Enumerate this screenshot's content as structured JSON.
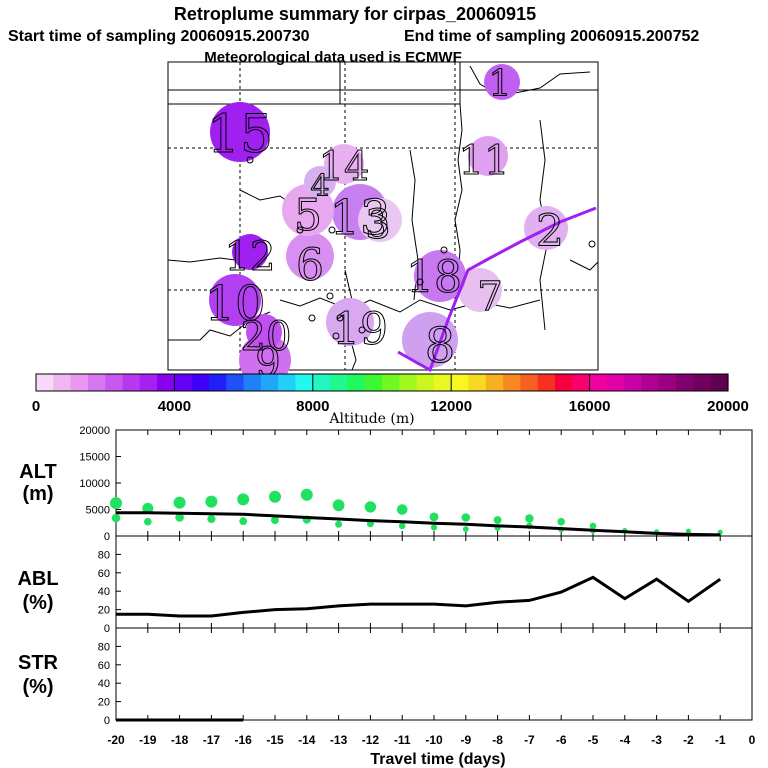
{
  "header": {
    "title": "Retroplume summary for cirpas_20060915",
    "start_label": "Start time of sampling 20060915.200730",
    "end_label": "End time of sampling 20060915.200752",
    "met_label": "Meteorological data used is ECMWF"
  },
  "colorbar": {
    "colors": [
      "#f8d8f8",
      "#f0b8f0",
      "#e898f0",
      "#d878f0",
      "#c858f0",
      "#b838f0",
      "#a820f0",
      "#8800f0",
      "#6800f8",
      "#4000f8",
      "#2020f8",
      "#2050f8",
      "#2080f8",
      "#20a8f8",
      "#20d0f8",
      "#20f8f0",
      "#20f8c0",
      "#20f890",
      "#20f860",
      "#40f830",
      "#70f820",
      "#a0f820",
      "#c8f820",
      "#e8f820",
      "#f8f820",
      "#f8d820",
      "#f8b020",
      "#f88820",
      "#f86020",
      "#f83020",
      "#f80040",
      "#f80070",
      "#f000a0",
      "#e000a8",
      "#c800a8",
      "#b00090",
      "#980080",
      "#800070",
      "#700060",
      "#600050"
    ],
    "tick_labels": [
      "0",
      "4000",
      "8000",
      "12000",
      "16000",
      "20000"
    ],
    "xlabel": "Altitude (m)"
  },
  "map": {
    "clusters": [
      {
        "label": "15",
        "day": -15,
        "color": "#a020f0"
      },
      {
        "label": "14",
        "day": -14,
        "color": "#e8b0f0"
      },
      {
        "label": "13",
        "day": -13,
        "color": "#c880f0"
      },
      {
        "label": "12",
        "day": -12,
        "color": "#a020f0"
      },
      {
        "label": "11",
        "day": -11,
        "color": "#e0a0f0"
      },
      {
        "label": "10",
        "day": -10,
        "color": "#b040f0"
      },
      {
        "label": "9",
        "day": -9,
        "color": "#d070f0"
      },
      {
        "label": "8",
        "day": -8,
        "color": "#d0a0f0"
      },
      {
        "label": "7",
        "day": -7,
        "color": "#e8c0f0"
      },
      {
        "label": "6",
        "day": -6,
        "color": "#d890f0"
      },
      {
        "label": "5",
        "day": -5,
        "color": "#e8a8f0"
      },
      {
        "label": "4",
        "day": -4,
        "color": "#d8b0f0"
      },
      {
        "label": "3",
        "day": -3,
        "color": "#e8c8f0"
      },
      {
        "label": "2",
        "day": -2,
        "color": "#e0b0f0"
      },
      {
        "label": "1",
        "day": -1,
        "color": "#c060f0"
      },
      {
        "label": "18",
        "day": -18,
        "color": "#c878f0"
      },
      {
        "label": "19",
        "day": -19,
        "color": "#d8a8f0"
      },
      {
        "label": "20",
        "day": -20,
        "color": "#c050f0"
      }
    ]
  },
  "chart_data": [
    {
      "type": "line",
      "title": "ALT (m)",
      "name_line1": "ALT",
      "name_line2": "(m)",
      "x": [
        -20,
        -19,
        -18,
        -17,
        -16,
        -15,
        -14,
        -13,
        -12,
        -11,
        -10,
        -9,
        -8,
        -7,
        -6,
        -5,
        -4,
        -3,
        -2,
        -1
      ],
      "ylim": [
        0,
        20000
      ],
      "yticks": [
        0,
        5000,
        10000,
        15000,
        20000
      ],
      "ytick_labels": [
        "0",
        "5000",
        "10000",
        "15000",
        "20000"
      ],
      "values": [
        4400,
        4400,
        4300,
        4200,
        4100,
        3800,
        3500,
        3200,
        2900,
        2700,
        2400,
        2200,
        1900,
        1700,
        1400,
        1100,
        800,
        500,
        300,
        200
      ],
      "scatter_color": "#20e060",
      "scatter": [
        {
          "x": -20,
          "y": 6200
        },
        {
          "x": -20,
          "y": 3400
        },
        {
          "x": -19,
          "y": 5200
        },
        {
          "x": -19,
          "y": 2700
        },
        {
          "x": -18,
          "y": 6300
        },
        {
          "x": -18,
          "y": 3500
        },
        {
          "x": -17,
          "y": 6500
        },
        {
          "x": -17,
          "y": 3200
        },
        {
          "x": -16,
          "y": 6900
        },
        {
          "x": -16,
          "y": 2800
        },
        {
          "x": -15,
          "y": 7400
        },
        {
          "x": -15,
          "y": 3000
        },
        {
          "x": -14,
          "y": 7800
        },
        {
          "x": -14,
          "y": 3100
        },
        {
          "x": -13,
          "y": 5800
        },
        {
          "x": -13,
          "y": 2200
        },
        {
          "x": -12,
          "y": 5500
        },
        {
          "x": -12,
          "y": 2300
        },
        {
          "x": -11,
          "y": 5000
        },
        {
          "x": -11,
          "y": 1900
        },
        {
          "x": -10,
          "y": 3600
        },
        {
          "x": -10,
          "y": 1600
        },
        {
          "x": -9,
          "y": 3500
        },
        {
          "x": -9,
          "y": 1300
        },
        {
          "x": -8,
          "y": 3000
        },
        {
          "x": -8,
          "y": 1500
        },
        {
          "x": -7,
          "y": 3300
        },
        {
          "x": -7,
          "y": 1900
        },
        {
          "x": -6,
          "y": 2700
        },
        {
          "x": -6,
          "y": 1200
        },
        {
          "x": -5,
          "y": 1900
        },
        {
          "x": -5,
          "y": 900
        },
        {
          "x": -4,
          "y": 1000
        },
        {
          "x": -3,
          "y": 800
        },
        {
          "x": -2,
          "y": 900
        },
        {
          "x": -1,
          "y": 700
        }
      ]
    },
    {
      "type": "line",
      "title": "ABL (%)",
      "name_line1": "ABL",
      "name_line2": "(%)",
      "x": [
        -20,
        -19,
        -18,
        -17,
        -16,
        -15,
        -14,
        -13,
        -12,
        -11,
        -10,
        -9,
        -8,
        -7,
        -6,
        -5,
        -4,
        -3,
        -2,
        -1
      ],
      "ylim": [
        0,
        100
      ],
      "yticks": [
        0,
        20,
        40,
        60,
        80
      ],
      "ytick_labels": [
        "0",
        "20",
        "40",
        "60",
        "80"
      ],
      "values": [
        15,
        15,
        13,
        13,
        17,
        20,
        21,
        24,
        26,
        26,
        26,
        24,
        28,
        30,
        39,
        55,
        32,
        53,
        29,
        53
      ]
    },
    {
      "type": "line",
      "title": "STR (%)",
      "name_line1": "STR",
      "name_line2": "(%)",
      "x": [
        -20,
        -19,
        -18,
        -17,
        -16
      ],
      "ylim": [
        0,
        100
      ],
      "yticks": [
        0,
        20,
        40,
        60,
        80
      ],
      "ytick_labels": [
        "0",
        "20",
        "40",
        "60",
        "80"
      ],
      "values": [
        0,
        0,
        0,
        0,
        0
      ]
    }
  ],
  "xaxis": {
    "label": "Travel time (days)",
    "ticks": [
      -20,
      -19,
      -18,
      -17,
      -16,
      -15,
      -14,
      -13,
      -12,
      -11,
      -10,
      -9,
      -8,
      -7,
      -6,
      -5,
      -4,
      -3,
      -2,
      -1,
      0
    ],
    "tick_labels": [
      "-20",
      "-19",
      "-18",
      "-17",
      "-16",
      "-15",
      "-14",
      "-13",
      "-12",
      "-11",
      "-10",
      "-9",
      "-8",
      "-7",
      "-6",
      "-5",
      "-4",
      "-3",
      "-2",
      "-1",
      "0"
    ]
  }
}
